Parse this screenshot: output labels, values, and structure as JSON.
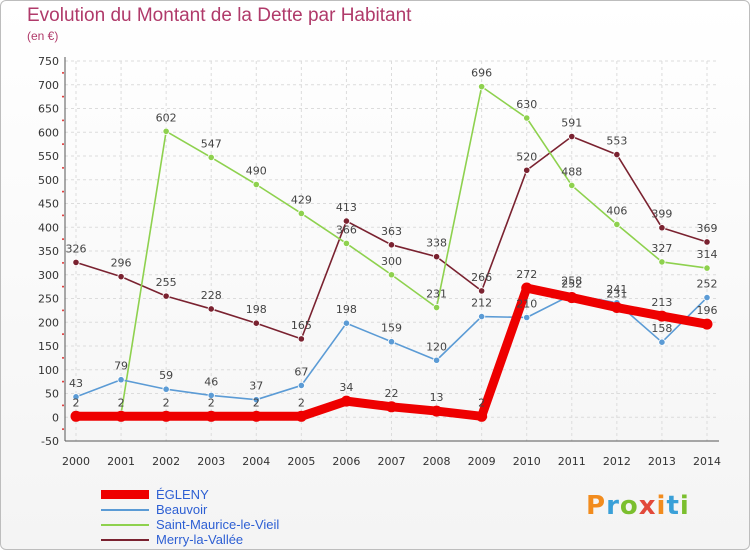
{
  "header": {
    "title": "Evolution du Montant de la Dette par Habitant",
    "unit": "(en €)"
  },
  "logo": {
    "text": "Proxiti",
    "colors": [
      "#f28c1e",
      "#3aa0d8",
      "#7bbf2e",
      "#e2493a"
    ]
  },
  "chart_data": {
    "type": "line",
    "x": [
      "2000",
      "2001",
      "2002",
      "2003",
      "2004",
      "2005",
      "2006",
      "2007",
      "2008",
      "2009",
      "2010",
      "2011",
      "2012",
      "2013",
      "2014"
    ],
    "ylim": [
      -50,
      750
    ],
    "yticks": [
      -50,
      0,
      50,
      100,
      150,
      200,
      250,
      300,
      350,
      400,
      450,
      500,
      550,
      600,
      650,
      700,
      750
    ],
    "grid": true,
    "legend_position": "bottom-left",
    "series": [
      {
        "name": "Merry-la-Vallée",
        "color": "#7a2230",
        "values": [
          326,
          296,
          255,
          228,
          198,
          165,
          413,
          363,
          338,
          266,
          520,
          591,
          553,
          399,
          369
        ],
        "labels": [
          "326",
          "296",
          "255",
          "228",
          "198",
          "165",
          "413",
          "363",
          "338",
          "266",
          "520",
          "591",
          "553",
          "399",
          "369"
        ]
      },
      {
        "name": "Saint-Maurice-le-Vieil",
        "color": "#8ed14e",
        "values": [
          5,
          7,
          602,
          547,
          490,
          429,
          366,
          300,
          231,
          696,
          630,
          488,
          406,
          327,
          314
        ],
        "labels": [
          "",
          "",
          "602",
          "547",
          "490",
          "429",
          "366",
          "300",
          "231",
          "696",
          "630",
          "488",
          "406",
          "327",
          "314"
        ]
      },
      {
        "name": "Beauvoir",
        "color": "#5b9bd5",
        "values": [
          43,
          79,
          59,
          46,
          37,
          67,
          198,
          159,
          120,
          212,
          210,
          258,
          241,
          158,
          252
        ],
        "labels": [
          "43",
          "79",
          "59",
          "46",
          "37",
          "67",
          "198",
          "159",
          "120",
          "212",
          "210",
          "258",
          "241",
          "158",
          "252"
        ]
      },
      {
        "name": "ÉGLENY",
        "color": "#ee0000",
        "values": [
          2,
          2,
          2,
          2,
          2,
          2,
          34,
          22,
          13,
          2,
          272,
          252,
          231,
          213,
          196
        ],
        "labels": [
          "2",
          "2",
          "2",
          "2",
          "2",
          "2",
          "34",
          "22",
          "13",
          "2",
          "272",
          "252",
          "231",
          "213",
          "196"
        ]
      }
    ]
  },
  "legend_order": [
    "ÉGLENY",
    "Beauvoir",
    "Saint-Maurice-le-Vieil",
    "Merry-la-Vallée"
  ]
}
